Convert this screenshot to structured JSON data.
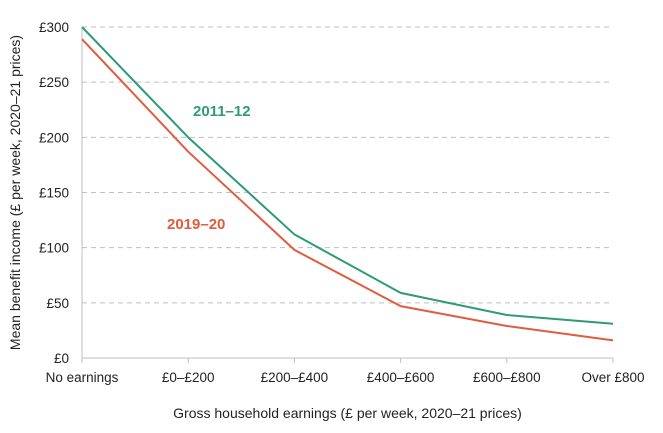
{
  "chart_data": {
    "type": "line",
    "xlabel": "Gross household earnings (£ per week, 2020–21 prices)",
    "ylabel": "Mean benefit income (£ per week, 2020–21 prices)",
    "categories": [
      "No earnings",
      "£0–£200",
      "£200–£400",
      "£400–£600",
      "£600–£800",
      "Over £800"
    ],
    "y_ticks": [
      "£0",
      "£50",
      "£100",
      "£150",
      "£200",
      "£250",
      "£300"
    ],
    "ylim": [
      0,
      300
    ],
    "y_tick_step": 50,
    "grid": "horizontal dashed",
    "legend": "inline labels",
    "series": [
      {
        "name": "2011–12",
        "color": "#2e9a78",
        "values": [
          300,
          200,
          112,
          59,
          39,
          31
        ]
      },
      {
        "name": "2019–20",
        "color": "#e05c3e",
        "values": [
          289,
          187,
          98,
          47,
          29,
          16
        ]
      }
    ]
  }
}
